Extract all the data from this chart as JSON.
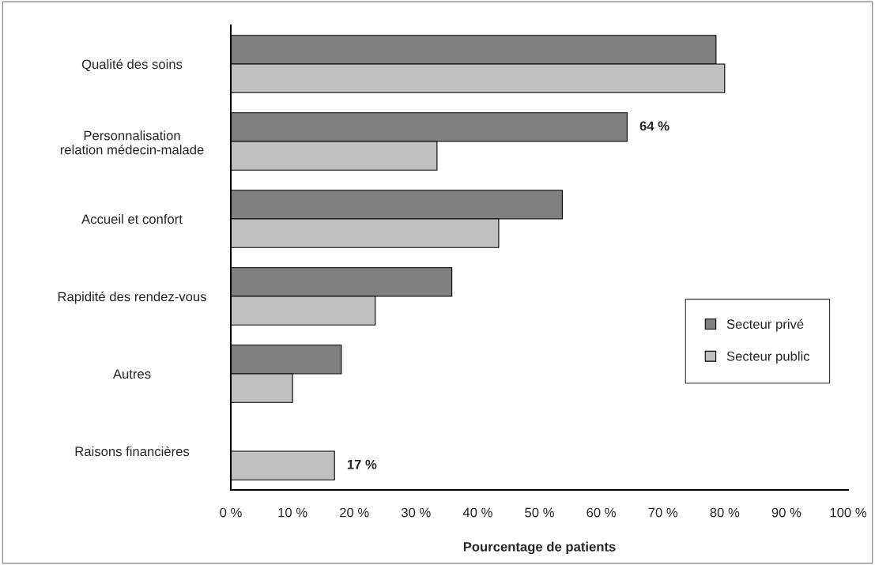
{
  "chart_data": {
    "type": "bar",
    "orientation": "horizontal",
    "xlabel": "Pourcentage de patients",
    "categories": [
      "Qualité des soins",
      "Personnalisation\nrelation médecin-malade",
      "Accueil et confort",
      "Rapidité des rendez-vous",
      "Autres",
      "Raisons financières"
    ],
    "series": [
      {
        "name": "Secteur privé",
        "color": "#808080",
        "values": [
          78.6,
          64.2,
          53.7,
          35.8,
          17.9,
          null
        ],
        "value_labels": [
          null,
          "64 %",
          null,
          null,
          null,
          null
        ]
      },
      {
        "name": "Secteur public",
        "color": "#c0c0c0",
        "values": [
          80,
          33.4,
          43.4,
          23.4,
          10.0,
          16.8
        ],
        "value_labels": [
          null,
          null,
          null,
          null,
          null,
          "17 %"
        ]
      }
    ],
    "xlim": [
      0,
      100
    ],
    "xticks": [
      {
        "value": 0,
        "label": "0 %"
      },
      {
        "value": 10,
        "label": "10 %"
      },
      {
        "value": 20,
        "label": "20 %"
      },
      {
        "value": 30,
        "label": "30 %"
      },
      {
        "value": 40,
        "label": "40 %"
      },
      {
        "value": 50,
        "label": "50 %"
      },
      {
        "value": 60,
        "label": "60 %"
      },
      {
        "value": 70,
        "label": "70 %"
      },
      {
        "value": 80,
        "label": "80 %"
      },
      {
        "value": 90,
        "label": "90 %"
      },
      {
        "value": 100,
        "label": "100 %"
      }
    ],
    "grid": false,
    "legend": "right"
  }
}
